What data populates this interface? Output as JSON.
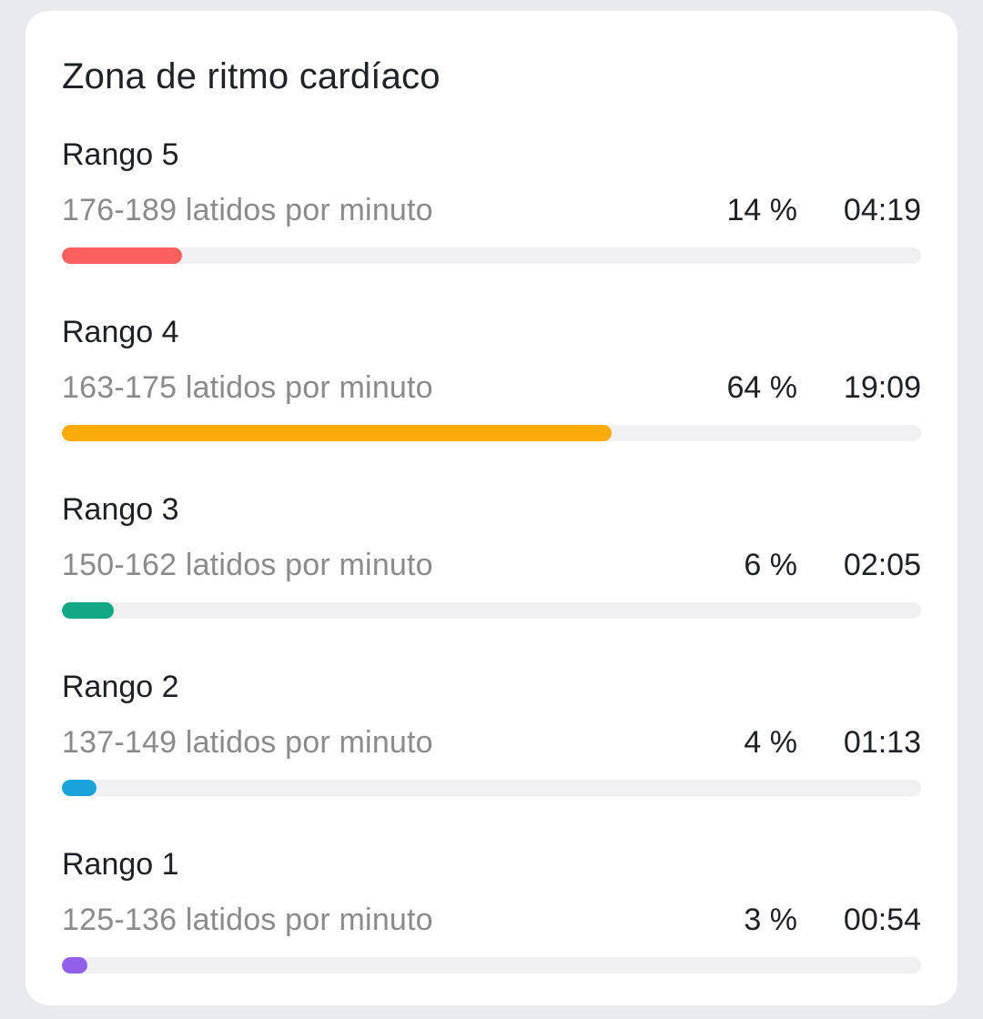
{
  "page": {
    "background_color": "#E8EAED"
  },
  "card": {
    "title": "Zona de ritmo cardíaco",
    "background_color": "#FFFFFF",
    "track_color": "#F0F0F2",
    "zones": [
      {
        "name": "Rango 5",
        "range": "176-189 latidos por minuto",
        "percent_label": "14 %",
        "percent_value": 14,
        "time": "04:19",
        "color": "#F7605C"
      },
      {
        "name": "Rango 4",
        "range": "163-175 latidos por minuto",
        "percent_label": "64 %",
        "percent_value": 64,
        "time": "19:09",
        "color": "#FBAB07"
      },
      {
        "name": "Rango 3",
        "range": "150-162 latidos por minuto",
        "percent_label": "6 %",
        "percent_value": 6,
        "time": "02:05",
        "color": "#11A886"
      },
      {
        "name": "Rango 2",
        "range": "137-149 latidos por minuto",
        "percent_label": "4 %",
        "percent_value": 4,
        "time": "01:13",
        "color": "#1AA2DA"
      },
      {
        "name": "Rango 1",
        "range": "125-136 latidos por minuto",
        "percent_label": "3 %",
        "percent_value": 3,
        "time": "00:54",
        "color": "#9261E9"
      }
    ]
  },
  "chart_data": {
    "type": "bar",
    "orientation": "horizontal",
    "title": "Zona de ritmo cardíaco",
    "categories": [
      "Rango 5",
      "Rango 4",
      "Rango 3",
      "Rango 2",
      "Rango 1"
    ],
    "bpm_ranges": [
      "176-189",
      "163-175",
      "150-162",
      "137-149",
      "125-136"
    ],
    "values_percent": [
      14,
      64,
      6,
      4,
      3
    ],
    "times": [
      "04:19",
      "19:09",
      "02:05",
      "01:13",
      "00:54"
    ],
    "bar_colors": [
      "#F7605C",
      "#FBAB07",
      "#11A886",
      "#1AA2DA",
      "#9261E9"
    ],
    "xlim": [
      0,
      100
    ],
    "unit": "latidos por minuto"
  }
}
